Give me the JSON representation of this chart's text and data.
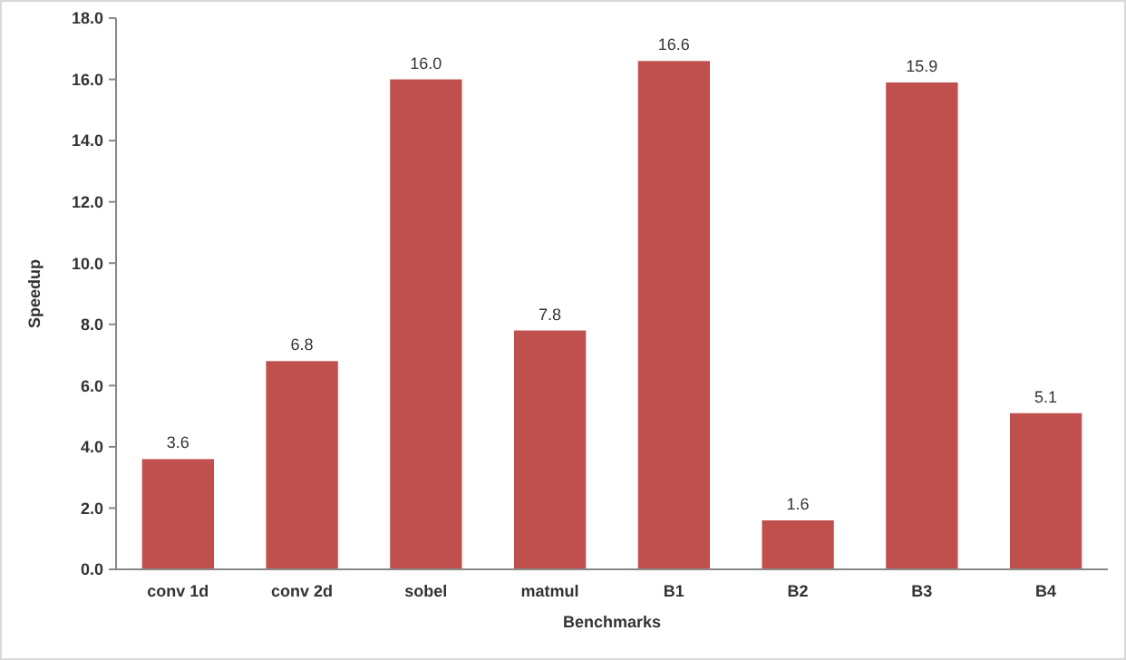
{
  "chart_data": {
    "type": "bar",
    "xlabel": "Benchmarks",
    "ylabel": "Speedup",
    "categories": [
      "conv 1d",
      "conv 2d",
      "sobel",
      "matmul",
      "B1",
      "B2",
      "B3",
      "B4"
    ],
    "values": [
      3.6,
      6.8,
      16.0,
      7.8,
      16.6,
      1.6,
      15.9,
      5.1
    ],
    "value_labels": [
      "3.6",
      "6.8",
      "16.0",
      "7.8",
      "16.6",
      "1.6",
      "15.9",
      "5.1"
    ],
    "color": "#c0504d",
    "ylim": [
      0,
      18
    ],
    "yticks": [
      {
        "value": 0,
        "label": "0.0"
      },
      {
        "value": 2,
        "label": "2.0"
      },
      {
        "value": 4,
        "label": "4.0"
      },
      {
        "value": 6,
        "label": "6.0"
      },
      {
        "value": 8,
        "label": "8.0"
      },
      {
        "value": 10,
        "label": "10.0"
      },
      {
        "value": 12,
        "label": "12.0"
      },
      {
        "value": 14,
        "label": "14.0"
      },
      {
        "value": 16,
        "label": "16.0"
      },
      {
        "value": 18,
        "label": "18.0"
      }
    ],
    "grid": false
  }
}
